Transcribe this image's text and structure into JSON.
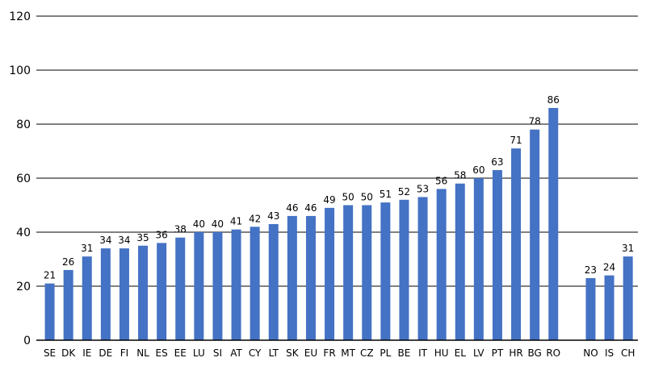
{
  "chart_data": {
    "type": "bar",
    "categories": [
      "SE",
      "DK",
      "IE",
      "DE",
      "FI",
      "NL",
      "ES",
      "EE",
      "LU",
      "SI",
      "AT",
      "CY",
      "LT",
      "SK",
      "EU",
      "FR",
      "MT",
      "CZ",
      "PL",
      "BE",
      "IT",
      "HU",
      "EL",
      "LV",
      "PT",
      "HR",
      "BG",
      "RO",
      "",
      "NO",
      "IS",
      "CH"
    ],
    "values": [
      21,
      26,
      31,
      34,
      34,
      35,
      36,
      38,
      40,
      40,
      41,
      42,
      43,
      46,
      46,
      49,
      50,
      50,
      51,
      52,
      53,
      56,
      58,
      60,
      63,
      71,
      78,
      86,
      null,
      23,
      24,
      31
    ],
    "data_labels": [
      "21",
      "26",
      "31",
      "34",
      "34",
      "35",
      "36",
      "38",
      "40",
      "40",
      "41",
      "42",
      "43",
      "46",
      "46",
      "49",
      "50",
      "50",
      "51",
      "52",
      "53",
      "56",
      "58",
      "60",
      "63",
      "71",
      "78",
      "86",
      "",
      "23",
      "24",
      "31"
    ],
    "yticks": [
      "0",
      "20",
      "40",
      "60",
      "80",
      "100",
      "120"
    ],
    "ylim": [
      0,
      120
    ],
    "ystep": 20,
    "grid": true,
    "bar_color": "#4472C4",
    "grid_color": "#000000"
  }
}
